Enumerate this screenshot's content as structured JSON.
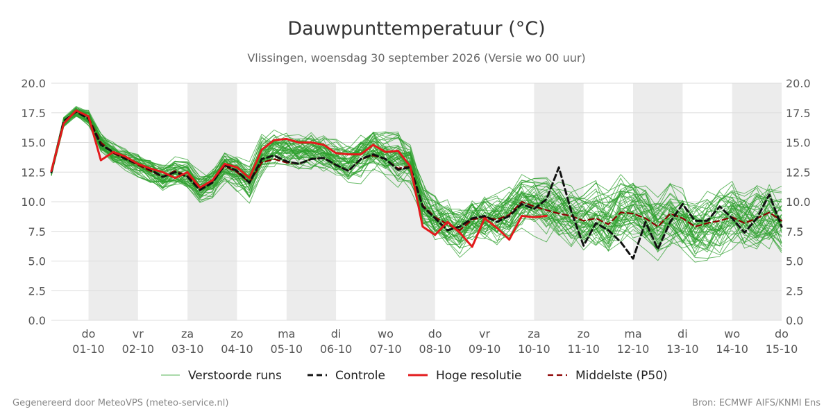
{
  "title": "Dauwpunttemperatuur (°C)",
  "subtitle": "Vlissingen, woensdag 30 september 2026 (Versie wo 00 uur)",
  "footer_left": "Gegenereerd door MeteoVPS (meteo-service.nl)",
  "footer_right": "Bron: ECMWF AIFS/KNMI Ens",
  "legend": [
    {
      "label": "Verstoorde runs",
      "color": "#2ca02c",
      "style": "thin-solid"
    },
    {
      "label": "Controle",
      "color": "#111111",
      "style": "dashed"
    },
    {
      "label": "Hoge resolutie",
      "color": "#e31a1c",
      "style": "solid"
    },
    {
      "label": "Middelste (P50)",
      "color": "#8b0000",
      "style": "dashed"
    }
  ],
  "chart_data": {
    "type": "line",
    "title": "Dauwpunttemperatuur (°C)",
    "subtitle": "Vlissingen, woensdag 30 september 2026 (Versie wo 00 uur)",
    "ylim": [
      0,
      20
    ],
    "yticks": [
      "0.0",
      "2.5",
      "5.0",
      "7.5",
      "10.0",
      "12.5",
      "15.0",
      "17.5",
      "20.0"
    ],
    "x_unit": "days since 30-09 00 UTC",
    "xlim": [
      -0.75,
      14.0
    ],
    "x_ticks": [
      {
        "day": "do",
        "date": "01-10"
      },
      {
        "day": "vr",
        "date": "02-10"
      },
      {
        "day": "za",
        "date": "03-10"
      },
      {
        "day": "zo",
        "date": "04-10"
      },
      {
        "day": "ma",
        "date": "05-10"
      },
      {
        "day": "di",
        "date": "06-10"
      },
      {
        "day": "wo",
        "date": "07-10"
      },
      {
        "day": "do",
        "date": "08-10"
      },
      {
        "day": "vr",
        "date": "09-10"
      },
      {
        "day": "za",
        "date": "10-10"
      },
      {
        "day": "zo",
        "date": "11-10"
      },
      {
        "day": "ma",
        "date": "12-10"
      },
      {
        "day": "di",
        "date": "13-10"
      },
      {
        "day": "wo",
        "date": "14-10"
      },
      {
        "day": "do",
        "date": "15-10"
      }
    ],
    "shaded_days": [
      0,
      2,
      4,
      6,
      9,
      11,
      13
    ],
    "grid": true,
    "legend_position": "bottom",
    "ensemble_count": 50,
    "ensemble_color": "#2ca02c",
    "series": [
      {
        "name": "Controle",
        "color": "#111111",
        "dash": "8,5",
        "width": 3,
        "x": [
          -0.75,
          -0.5,
          -0.25,
          0,
          0.25,
          0.5,
          0.75,
          1,
          1.25,
          1.5,
          1.75,
          2,
          2.25,
          2.5,
          2.75,
          3,
          3.25,
          3.5,
          3.75,
          4,
          4.25,
          4.5,
          4.75,
          5,
          5.25,
          5.5,
          5.75,
          6,
          6.25,
          6.5,
          6.75,
          7,
          7.25,
          7.5,
          7.75,
          8,
          8.25,
          8.5,
          8.75,
          9,
          9.25,
          9.5,
          9.75,
          10,
          10.25,
          10.5,
          10.75,
          11,
          11.25,
          11.5,
          11.75,
          12,
          12.25,
          12.5,
          12.75,
          13,
          13.25,
          13.5,
          13.75,
          14
        ],
        "y": [
          12.5,
          16.8,
          17.6,
          17.0,
          14.8,
          14.2,
          13.6,
          13.2,
          12.7,
          12.1,
          12.5,
          12.1,
          11.0,
          11.6,
          13.1,
          12.6,
          11.6,
          13.6,
          13.9,
          13.4,
          13.2,
          13.6,
          13.7,
          13.1,
          12.6,
          13.6,
          14.0,
          13.6,
          12.7,
          12.9,
          9.6,
          8.6,
          7.6,
          7.9,
          8.6,
          8.8,
          8.3,
          8.8,
          9.8,
          9.4,
          10.2,
          12.9,
          9.2,
          6.3,
          8.2,
          7.6,
          6.6,
          5.2,
          8.3,
          6.0,
          8.3,
          9.8,
          8.4,
          8.4,
          9.6,
          8.6,
          7.4,
          8.6,
          10.6,
          7.9
        ]
      },
      {
        "name": "Hoge resolutie",
        "color": "#e31a1c",
        "dash": "",
        "width": 3,
        "x": [
          -0.75,
          -0.5,
          -0.25,
          0,
          0.25,
          0.5,
          0.75,
          1,
          1.25,
          1.5,
          1.75,
          2,
          2.25,
          2.5,
          2.75,
          3,
          3.25,
          3.5,
          3.75,
          4,
          4.25,
          4.5,
          4.75,
          5,
          5.25,
          5.5,
          5.75,
          6,
          6.25,
          6.5,
          6.75,
          7,
          7.25,
          7.5,
          7.75,
          8,
          8.25,
          8.5,
          8.75,
          9,
          9.25
        ],
        "y": [
          12.6,
          16.6,
          17.7,
          17.2,
          13.5,
          14.2,
          13.8,
          13.2,
          12.8,
          12.5,
          12.0,
          12.5,
          11.2,
          11.8,
          13.2,
          12.9,
          12.0,
          14.4,
          15.2,
          15.3,
          15.0,
          15.0,
          14.8,
          14.1,
          14.0,
          14.0,
          14.8,
          14.2,
          14.3,
          13.0,
          7.9,
          7.2,
          8.3,
          7.4,
          6.2,
          8.6,
          7.8,
          6.8,
          8.8,
          8.7,
          8.8
        ]
      },
      {
        "name": "Middelste (P50)",
        "color": "#8b0000",
        "dash": "8,5",
        "width": 2.2,
        "x": [
          -0.75,
          -0.5,
          -0.25,
          0,
          0.25,
          0.5,
          0.75,
          1,
          1.25,
          1.5,
          1.75,
          2,
          2.25,
          2.5,
          2.75,
          3,
          3.25,
          3.5,
          3.75,
          4,
          4.25,
          4.5,
          4.75,
          5,
          5.25,
          5.5,
          5.75,
          6,
          6.25,
          6.5,
          6.75,
          7,
          7.25,
          7.5,
          7.75,
          8,
          8.25,
          8.5,
          8.75,
          9,
          9.25,
          9.5,
          9.75,
          10,
          10.25,
          10.5,
          10.75,
          11,
          11.25,
          11.5,
          11.75,
          12,
          12.25,
          12.5,
          12.75,
          13,
          13.25,
          13.5,
          13.75,
          14
        ],
        "y": [
          12.5,
          16.7,
          17.6,
          17.1,
          15.0,
          14.1,
          13.6,
          13.1,
          12.6,
          12.1,
          12.6,
          12.2,
          11.2,
          11.7,
          13.0,
          12.5,
          11.6,
          13.3,
          13.6,
          13.3,
          13.2,
          13.6,
          13.7,
          13.1,
          12.6,
          13.6,
          13.9,
          13.6,
          12.8,
          13.0,
          9.7,
          8.7,
          8.1,
          7.6,
          8.5,
          8.7,
          8.5,
          8.9,
          10.0,
          9.6,
          9.3,
          9.0,
          8.8,
          8.4,
          8.6,
          8.1,
          9.1,
          9.0,
          8.6,
          7.9,
          9.0,
          8.6,
          7.9,
          8.2,
          8.4,
          8.7,
          8.2,
          8.6,
          9.1,
          8.4
        ]
      }
    ]
  }
}
